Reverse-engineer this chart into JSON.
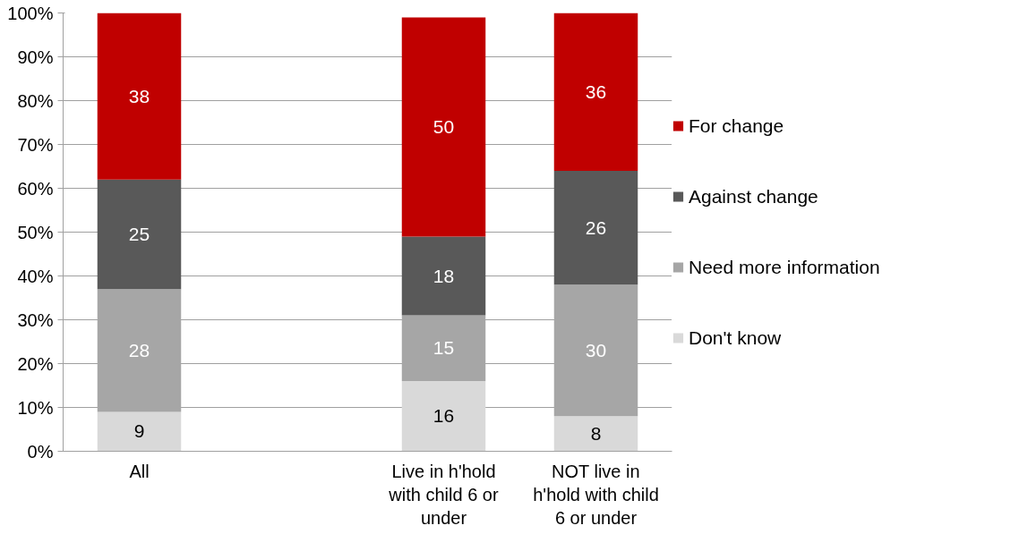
{
  "chart_data": {
    "type": "bar",
    "stacked": true,
    "categories": [
      "All",
      null,
      "Live in h'hold with child 6 or under",
      "NOT live in h'hold with child 6 or under"
    ],
    "series": [
      {
        "name": "Don't know",
        "color": "#d9d9d9",
        "values": [
          9,
          null,
          16,
          8
        ]
      },
      {
        "name": "Need more information",
        "color": "#a6a6a6",
        "values": [
          28,
          null,
          15,
          30
        ]
      },
      {
        "name": "Against change",
        "color": "#595959",
        "values": [
          25,
          null,
          18,
          26
        ]
      },
      {
        "name": "For change",
        "color": "#c00000",
        "values": [
          38,
          null,
          50,
          36
        ]
      }
    ],
    "ylim": [
      0,
      100
    ],
    "yticks": [
      {
        "value": 0,
        "label": "0%"
      },
      {
        "value": 10,
        "label": "10%"
      },
      {
        "value": 20,
        "label": "20%"
      },
      {
        "value": 30,
        "label": "30%"
      },
      {
        "value": 40,
        "label": "40%"
      },
      {
        "value": 50,
        "label": "50%"
      },
      {
        "value": 60,
        "label": "60%"
      },
      {
        "value": 70,
        "label": "70%"
      },
      {
        "value": 80,
        "label": "80%"
      },
      {
        "value": 90,
        "label": "90%"
      },
      {
        "value": 100,
        "label": "100%"
      }
    ],
    "grid": "y",
    "legend": "right",
    "data_labels": true
  }
}
